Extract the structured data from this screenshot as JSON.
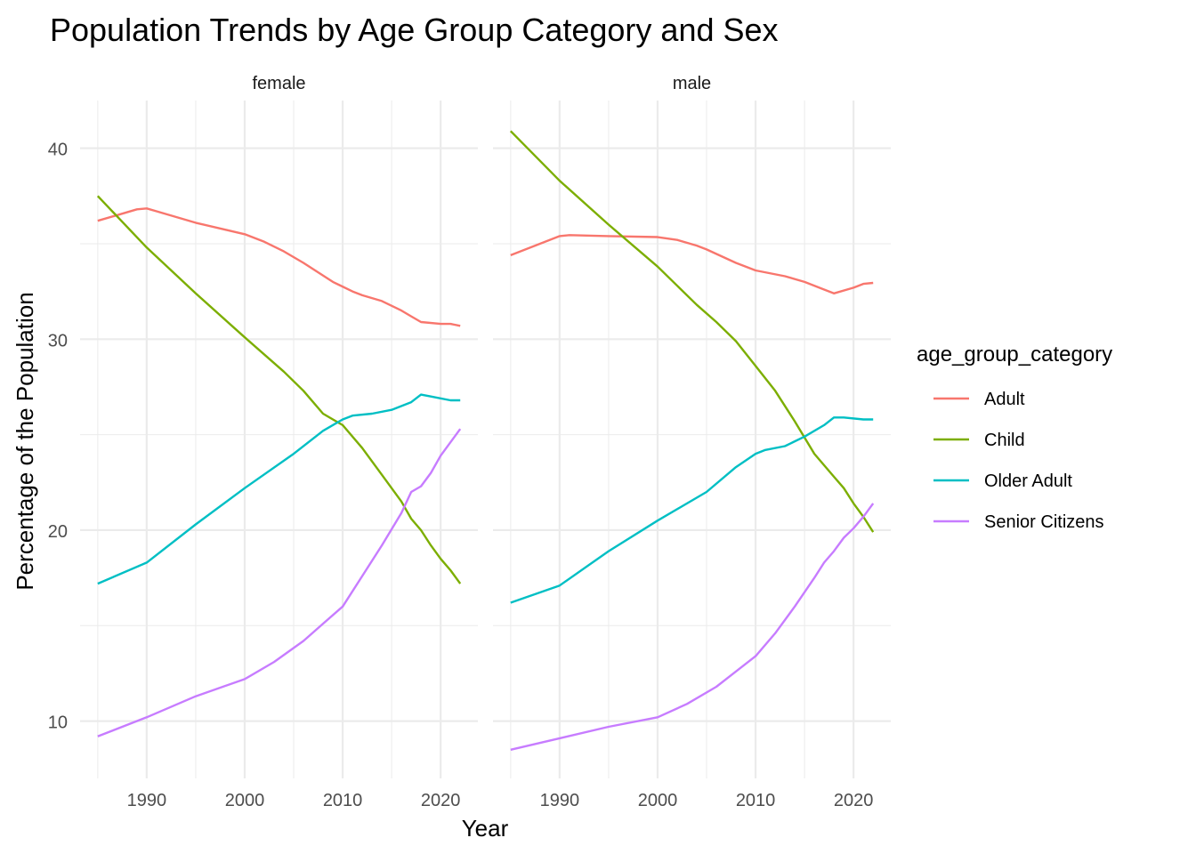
{
  "chart_data": {
    "type": "line",
    "title": "Population Trends by Age Group Category and Sex",
    "xlabel": "Year",
    "ylabel": "Percentage of the Population",
    "xlim": [
      1983.2,
      2023.8
    ],
    "ylim": [
      7,
      42.5
    ],
    "x_ticks": [
      1990,
      2000,
      2010,
      2020
    ],
    "y_ticks": [
      10,
      20,
      30,
      40
    ],
    "grid": true,
    "legend": {
      "title": "age_group_category",
      "position": "right"
    },
    "series_colors": {
      "Adult": "#F8766D",
      "Child": "#7CAE00",
      "Older Adult": "#00BFC4",
      "Senior Citizens": "#C77CFF"
    },
    "facets": [
      {
        "label": "female",
        "series": [
          {
            "name": "Adult",
            "x": [
              1985,
              1987,
              1989,
              1990,
              1991,
              1995,
              2000,
              2002,
              2004,
              2006,
              2009,
              2011,
              2012,
              2014,
              2016,
              2017,
              2018,
              2020,
              2021,
              2022
            ],
            "values": [
              36.2,
              36.5,
              36.8,
              36.85,
              36.7,
              36.1,
              35.5,
              35.1,
              34.6,
              34.0,
              33.0,
              32.5,
              32.3,
              32.0,
              31.5,
              31.2,
              30.9,
              30.8,
              30.8,
              30.7
            ]
          },
          {
            "name": "Child",
            "x": [
              1985,
              1990,
              1995,
              2000,
              2004,
              2006,
              2008,
              2010,
              2012,
              2014,
              2016,
              2017,
              2018,
              2019,
              2020,
              2021,
              2022
            ],
            "values": [
              37.5,
              34.8,
              32.4,
              30.1,
              28.3,
              27.3,
              26.1,
              25.5,
              24.3,
              22.9,
              21.5,
              20.6,
              20.0,
              19.2,
              18.5,
              17.9,
              17.2
            ]
          },
          {
            "name": "Older Adult",
            "x": [
              1985,
              1990,
              1995,
              2000,
              2005,
              2008,
              2010,
              2011,
              2013,
              2015,
              2017,
              2018,
              2019,
              2021,
              2022
            ],
            "values": [
              17.2,
              18.3,
              20.3,
              22.2,
              24.0,
              25.2,
              25.8,
              26.0,
              26.1,
              26.3,
              26.7,
              27.1,
              27.0,
              26.8,
              26.8
            ]
          },
          {
            "name": "Senior Citizens",
            "x": [
              1985,
              1990,
              1995,
              2000,
              2003,
              2006,
              2008,
              2010,
              2012,
              2014,
              2016,
              2017,
              2018,
              2019,
              2020,
              2021,
              2022
            ],
            "values": [
              9.2,
              10.2,
              11.3,
              12.2,
              13.1,
              14.2,
              15.1,
              16.0,
              17.6,
              19.2,
              20.9,
              22.0,
              22.3,
              23.0,
              23.9,
              24.6,
              25.3
            ]
          }
        ]
      },
      {
        "label": "male",
        "series": [
          {
            "name": "Adult",
            "x": [
              1985,
              1988,
              1990,
              1991,
              1995,
              2000,
              2002,
              2004,
              2005,
              2008,
              2010,
              2013,
              2015,
              2017,
              2018,
              2020,
              2021,
              2022
            ],
            "values": [
              34.4,
              35.0,
              35.4,
              35.45,
              35.4,
              35.35,
              35.2,
              34.9,
              34.7,
              34.0,
              33.6,
              33.3,
              33.0,
              32.6,
              32.4,
              32.7,
              32.9,
              32.95
            ]
          },
          {
            "name": "Child",
            "x": [
              1985,
              1990,
              1995,
              2000,
              2002,
              2004,
              2006,
              2008,
              2010,
              2012,
              2014,
              2016,
              2017,
              2018,
              2019,
              2020,
              2021,
              2022
            ],
            "values": [
              40.9,
              38.3,
              36.0,
              33.8,
              32.8,
              31.8,
              30.9,
              29.9,
              28.6,
              27.3,
              25.7,
              24.0,
              23.4,
              22.8,
              22.2,
              21.4,
              20.7,
              19.9
            ]
          },
          {
            "name": "Older Adult",
            "x": [
              1985,
              1990,
              1995,
              2000,
              2005,
              2008,
              2010,
              2011,
              2013,
              2015,
              2017,
              2018,
              2019,
              2021,
              2022
            ],
            "values": [
              16.2,
              17.1,
              18.9,
              20.5,
              22.0,
              23.3,
              24.0,
              24.2,
              24.4,
              24.9,
              25.5,
              25.9,
              25.9,
              25.8,
              25.8
            ]
          },
          {
            "name": "Senior Citizens",
            "x": [
              1985,
              1990,
              1995,
              2000,
              2003,
              2006,
              2008,
              2010,
              2012,
              2014,
              2016,
              2017,
              2018,
              2019,
              2020,
              2021,
              2022
            ],
            "values": [
              8.5,
              9.1,
              9.7,
              10.2,
              10.9,
              11.8,
              12.6,
              13.4,
              14.6,
              16.0,
              17.5,
              18.3,
              18.9,
              19.6,
              20.1,
              20.7,
              21.4
            ]
          }
        ]
      }
    ]
  }
}
